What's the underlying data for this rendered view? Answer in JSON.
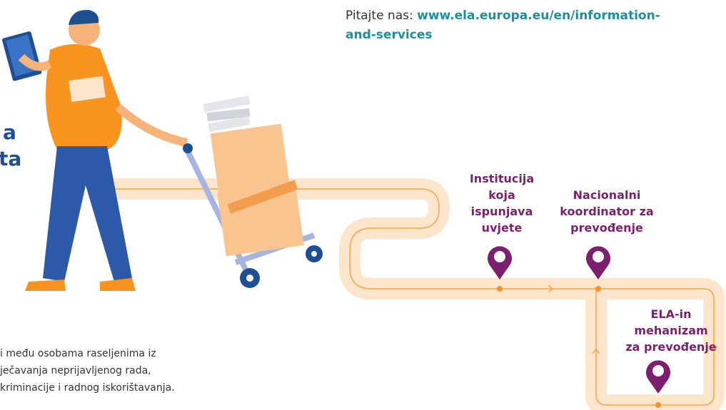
{
  "header": {
    "prefix": "Pitajte nas:",
    "link_lines": [
      "www.ela.europa.eu/en/information-",
      "and-services"
    ]
  },
  "heading": {
    "lines": [
      "a",
      "ta"
    ]
  },
  "nodes": [
    {
      "lines": [
        "Institucija",
        "koja",
        "ispunjava",
        "uvjete"
      ]
    },
    {
      "lines": [
        "Nacionalni",
        "koordinator za",
        "prevođenje"
      ]
    },
    {
      "lines": [
        "ELA-in",
        "mehanizam",
        "za prevođenje"
      ]
    }
  ],
  "body": {
    "lines": [
      "i među osobama raseljenima iz",
      "ječavanja neprijavljenog rada,",
      "kriminacije i radnog iskorištavanja."
    ]
  }
}
